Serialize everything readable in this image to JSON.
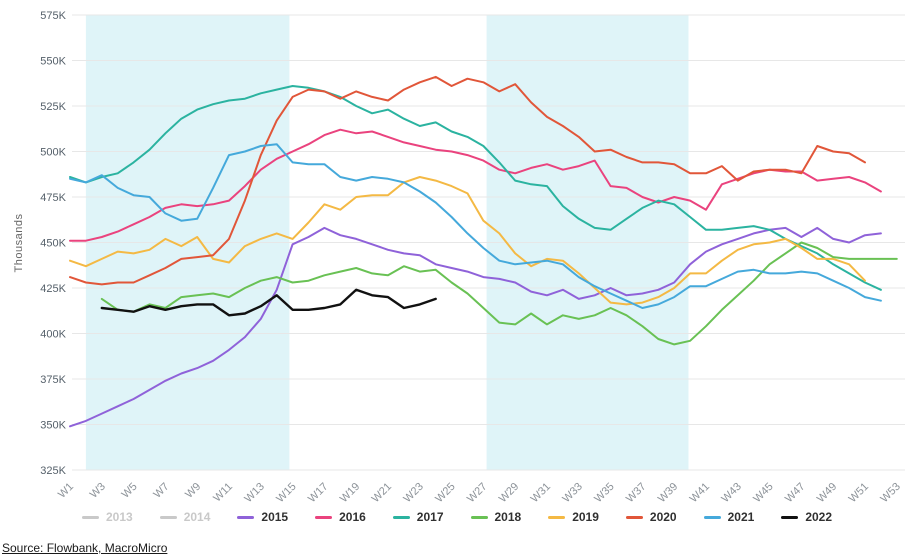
{
  "source": {
    "text": "Source: Flowbank, MacroMicro"
  },
  "chart_data": {
    "type": "line",
    "title": "",
    "xlabel": "",
    "ylabel": "Thousands",
    "ylim": [
      325,
      575
    ],
    "grid": true,
    "legend_position": "bottom",
    "band_color": "#dff4f8",
    "grid_color": "#e7e7e7",
    "highlight_bands": [
      {
        "from_week": 2.0,
        "to_week": 14.8
      },
      {
        "from_week": 27.2,
        "to_week": 39.9
      }
    ],
    "y_axis": {
      "ticks": [
        575,
        550,
        525,
        500,
        475,
        450,
        425,
        400,
        375,
        350,
        325
      ],
      "tick_suffix": "K"
    },
    "x_axis": {
      "weeks": 53,
      "labels": [
        "W1",
        "W3",
        "W5",
        "W7",
        "W9",
        "W11",
        "W13",
        "W15",
        "W17",
        "W19",
        "W21",
        "W23",
        "W25",
        "W27",
        "W29",
        "W31",
        "W33",
        "W35",
        "W37",
        "W39",
        "W41",
        "W43",
        "W45",
        "W47",
        "W49",
        "W51",
        "W53"
      ]
    },
    "series": [
      {
        "name": "2013",
        "color": "#c9c9c9",
        "enabled": false,
        "values": []
      },
      {
        "name": "2014",
        "color": "#c9c9c9",
        "enabled": false,
        "values": []
      },
      {
        "name": "2015",
        "color": "#8f62d9",
        "enabled": true,
        "values": [
          349,
          352,
          356,
          360,
          364,
          369,
          374,
          378,
          381,
          385,
          391,
          398,
          408,
          424,
          449,
          453,
          458,
          454,
          452,
          449,
          446,
          444,
          443,
          438,
          436,
          434,
          431,
          430,
          428,
          423,
          421,
          424,
          419,
          421,
          425,
          421,
          422,
          424,
          428,
          438,
          445,
          449,
          452,
          455,
          457,
          458,
          453,
          458,
          452,
          450,
          454,
          455,
          null
        ]
      },
      {
        "name": "2016",
        "color": "#ea437e",
        "enabled": true,
        "values": [
          451,
          451,
          453,
          456,
          460,
          464,
          469,
          471,
          470,
          471,
          473,
          481,
          490,
          496,
          500,
          504,
          509,
          512,
          510,
          511,
          508,
          505,
          503,
          501,
          500,
          498,
          495,
          490,
          488,
          491,
          493,
          490,
          492,
          495,
          481,
          480,
          475,
          472,
          475,
          473,
          468,
          482,
          485,
          488,
          490,
          489,
          489,
          484,
          485,
          486,
          483,
          478,
          null
        ]
      },
      {
        "name": "2017",
        "color": "#2bb3a0",
        "enabled": true,
        "values": [
          486,
          483,
          486,
          488,
          494,
          501,
          510,
          518,
          523,
          526,
          528,
          529,
          532,
          534,
          536,
          535,
          533,
          530,
          525,
          521,
          523,
          518,
          514,
          516,
          511,
          508,
          503,
          494,
          484,
          482,
          481,
          470,
          463,
          458,
          457,
          463,
          469,
          473,
          471,
          464,
          457,
          457,
          458,
          459,
          457,
          452,
          448,
          444,
          438,
          433,
          428,
          424,
          null
        ]
      },
      {
        "name": "2018",
        "color": "#69c154",
        "enabled": true,
        "values": [
          null,
          null,
          419,
          413,
          412,
          416,
          414,
          420,
          421,
          422,
          420,
          425,
          429,
          431,
          428,
          429,
          432,
          434,
          436,
          433,
          432,
          437,
          434,
          435,
          428,
          422,
          414,
          406,
          405,
          411,
          405,
          410,
          408,
          410,
          414,
          410,
          404,
          397,
          394,
          396,
          404,
          413,
          421,
          429,
          438,
          444,
          450,
          447,
          442,
          441,
          441,
          441,
          441
        ]
      },
      {
        "name": "2019",
        "color": "#f4b944",
        "enabled": true,
        "values": [
          440,
          437,
          441,
          445,
          444,
          446,
          452,
          448,
          453,
          441,
          439,
          448,
          452,
          455,
          452,
          461,
          471,
          468,
          475,
          476,
          476,
          483,
          486,
          484,
          481,
          477,
          462,
          455,
          444,
          437,
          441,
          440,
          433,
          425,
          417,
          416,
          417,
          420,
          425,
          433,
          433,
          440,
          446,
          449,
          450,
          452,
          447,
          441,
          441,
          438,
          429,
          null,
          null
        ]
      },
      {
        "name": "2020",
        "color": "#e15639",
        "enabled": true,
        "values": [
          431,
          428,
          427,
          428,
          428,
          432,
          436,
          441,
          442,
          443,
          452,
          473,
          498,
          517,
          530,
          534,
          533,
          529,
          533,
          530,
          528,
          534,
          538,
          541,
          536,
          540,
          538,
          533,
          537,
          527,
          519,
          514,
          508,
          500,
          501,
          497,
          494,
          494,
          493,
          488,
          488,
          492,
          484,
          489,
          490,
          490,
          488,
          503,
          500,
          499,
          494,
          null,
          null
        ]
      },
      {
        "name": "2021",
        "color": "#45a9db",
        "enabled": true,
        "values": [
          485,
          483,
          487,
          480,
          476,
          475,
          466,
          462,
          463,
          480,
          498,
          500,
          503,
          504,
          494,
          493,
          493,
          486,
          484,
          486,
          485,
          483,
          478,
          472,
          464,
          455,
          447,
          440,
          438,
          439,
          440,
          438,
          431,
          426,
          422,
          418,
          414,
          416,
          420,
          426,
          426,
          430,
          434,
          435,
          433,
          433,
          434,
          433,
          429,
          425,
          420,
          418,
          null
        ]
      },
      {
        "name": "2022",
        "color": "#111111",
        "enabled": true,
        "values": [
          null,
          null,
          414,
          413,
          412,
          415,
          413,
          415,
          416,
          416,
          410,
          411,
          415,
          421,
          413,
          413,
          414,
          416,
          424,
          421,
          420,
          414,
          416,
          419,
          null,
          null,
          null,
          null,
          null,
          null,
          null,
          null,
          null,
          null,
          null,
          null,
          null,
          null,
          null,
          null,
          null,
          null,
          null,
          null,
          null,
          null,
          null,
          null,
          null,
          null,
          null,
          null,
          null
        ]
      }
    ]
  }
}
